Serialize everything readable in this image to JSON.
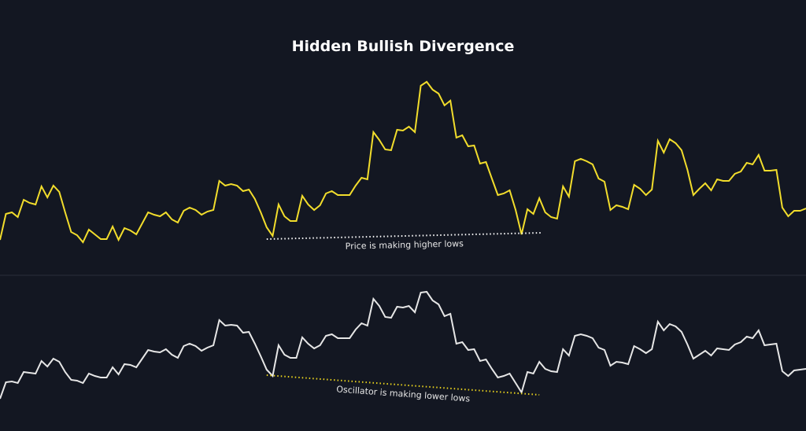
{
  "chart_data": {
    "type": "line",
    "title": "Hidden Bullish Divergence",
    "xlabel": "",
    "ylabel": "",
    "grid": false,
    "background": "#131722",
    "panels": [
      {
        "name_id": "price",
        "color": "#f2dd2c",
        "ylim": [
          -30,
          230
        ],
        "values": [
          15,
          48,
          50,
          44,
          66,
          62,
          60,
          83,
          69,
          84,
          76,
          50,
          25,
          21,
          12,
          28,
          22,
          16,
          16,
          32,
          15,
          30,
          27,
          22,
          36,
          50,
          47,
          45,
          50,
          41,
          37,
          52,
          56,
          53,
          47,
          51,
          53,
          90,
          84,
          86,
          84,
          77,
          79,
          67,
          50,
          31,
          20,
          60,
          45,
          39,
          39,
          71,
          60,
          53,
          59,
          74,
          77,
          72,
          72,
          72,
          84,
          94,
          92,
          152,
          142,
          130,
          129,
          155,
          154,
          159,
          152,
          211,
          216,
          206,
          201,
          186,
          192,
          145,
          148,
          134,
          135,
          112,
          114,
          93,
          72,
          74,
          78,
          53,
          22,
          54,
          48,
          68,
          50,
          44,
          42,
          83,
          70,
          115,
          118,
          115,
          111,
          93,
          89,
          53,
          59,
          57,
          54,
          85,
          80,
          72,
          79,
          141,
          126,
          143,
          138,
          129,
          104,
          72,
          80,
          87,
          78,
          92,
          90,
          90,
          99,
          102,
          113,
          111,
          123,
          103,
          103,
          104,
          56,
          45,
          52,
          52,
          55
        ],
        "annotation": {
          "text": "Price is making higher lows",
          "from": [
            45,
            16
          ],
          "to": [
            91.5,
            24
          ],
          "color": "#ffffff"
        }
      },
      {
        "name_id": "oscillator",
        "color": "#e6e6e6",
        "ylim": [
          0,
          170
        ],
        "values": [
          13,
          34,
          35,
          33,
          47,
          46,
          45,
          61,
          54,
          64,
          60,
          47,
          37,
          36,
          33,
          45,
          42,
          40,
          40,
          53,
          44,
          57,
          56,
          53,
          64,
          75,
          73,
          72,
          76,
          69,
          65,
          80,
          83,
          80,
          74,
          78,
          81,
          113,
          106,
          107,
          106,
          97,
          98,
          83,
          67,
          50,
          42,
          81,
          69,
          65,
          65,
          91,
          83,
          77,
          81,
          93,
          95,
          90,
          90,
          90,
          101,
          109,
          106,
          140,
          131,
          117,
          116,
          130,
          129,
          131,
          123,
          148,
          149,
          138,
          133,
          118,
          121,
          83,
          85,
          75,
          76,
          61,
          63,
          51,
          40,
          42,
          45,
          33,
          21,
          47,
          45,
          60,
          51,
          48,
          47,
          76,
          68,
          93,
          95,
          93,
          90,
          78,
          75,
          55,
          60,
          59,
          57,
          80,
          76,
          71,
          76,
          111,
          100,
          108,
          105,
          98,
          82,
          64,
          69,
          74,
          68,
          77,
          76,
          75,
          82,
          85,
          92,
          90,
          100,
          81,
          82,
          83,
          48,
          42,
          49,
          50,
          51
        ],
        "annotation": {
          "text": "Oscillator is making lower lows",
          "from": [
            45,
            43
          ],
          "to": [
            91,
            18
          ],
          "color": "#e8d21d"
        }
      }
    ]
  }
}
